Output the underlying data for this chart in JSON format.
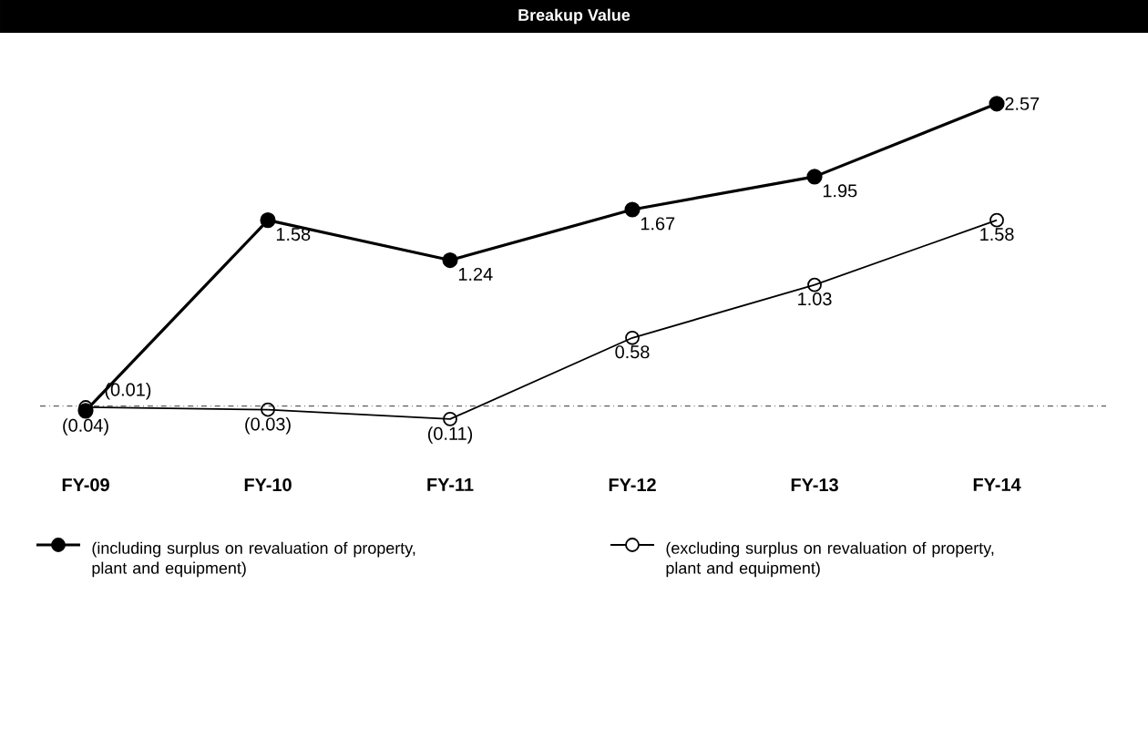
{
  "chart_data": {
    "type": "line",
    "title": "Breakup Value",
    "categories": [
      "FY-09",
      "FY-10",
      "FY-11",
      "FY-12",
      "FY-13",
      "FY-14"
    ],
    "series": [
      {
        "name": "(including surplus on revaluation of property, plant and equipment)",
        "color": "#000000",
        "values": [
          -0.04,
          1.58,
          1.24,
          1.67,
          1.95,
          2.57
        ],
        "value_labels": [
          "(0.04)",
          "1.58",
          "1.24",
          "1.67",
          "1.95",
          "2.57"
        ]
      },
      {
        "name": "(excluding surplus on revaluation of property, plant and equipment)",
        "color": "#000000",
        "values": [
          -0.01,
          -0.03,
          -0.11,
          0.58,
          1.03,
          1.58
        ],
        "value_labels": [
          "(0.01)",
          "(0.03)",
          "(0.11)",
          "0.58",
          "1.03",
          "1.58"
        ]
      }
    ],
    "ref_lines": [
      {
        "axis": "y",
        "value": 0,
        "line_style": "dashdotted"
      }
    ],
    "marker": "circle",
    "line_style": "solid",
    "legend": "bottom",
    "grid": false
  }
}
